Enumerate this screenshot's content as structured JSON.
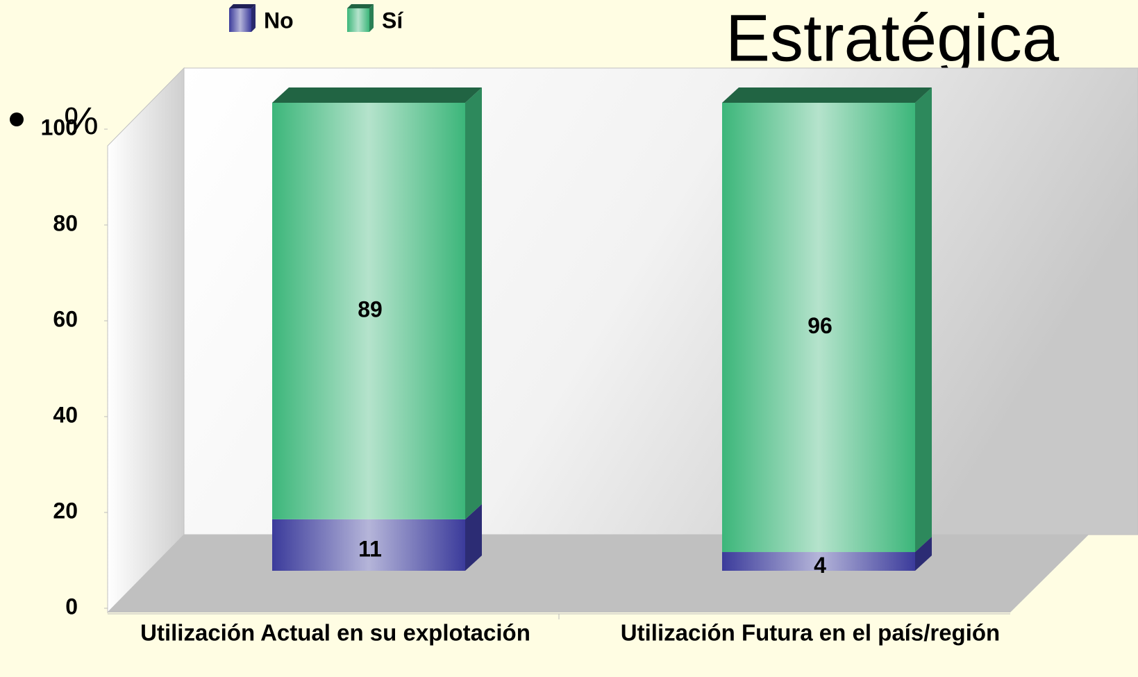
{
  "chart_data": {
    "type": "bar3d_stacked",
    "title": "Estratégica",
    "y_label": "%",
    "categories": [
      "Utilización Actual en su explotación",
      "Utilización Futura en el país/región"
    ],
    "series": [
      {
        "name": "No",
        "color": "#3b3b9b",
        "values": [
          11,
          4
        ]
      },
      {
        "name": "Sí",
        "color": "#3cb67a",
        "values": [
          89,
          96
        ]
      }
    ],
    "ylim": [
      0,
      100
    ],
    "yticks": [
      0,
      20,
      40,
      60,
      80,
      100
    ],
    "legend": "top"
  }
}
